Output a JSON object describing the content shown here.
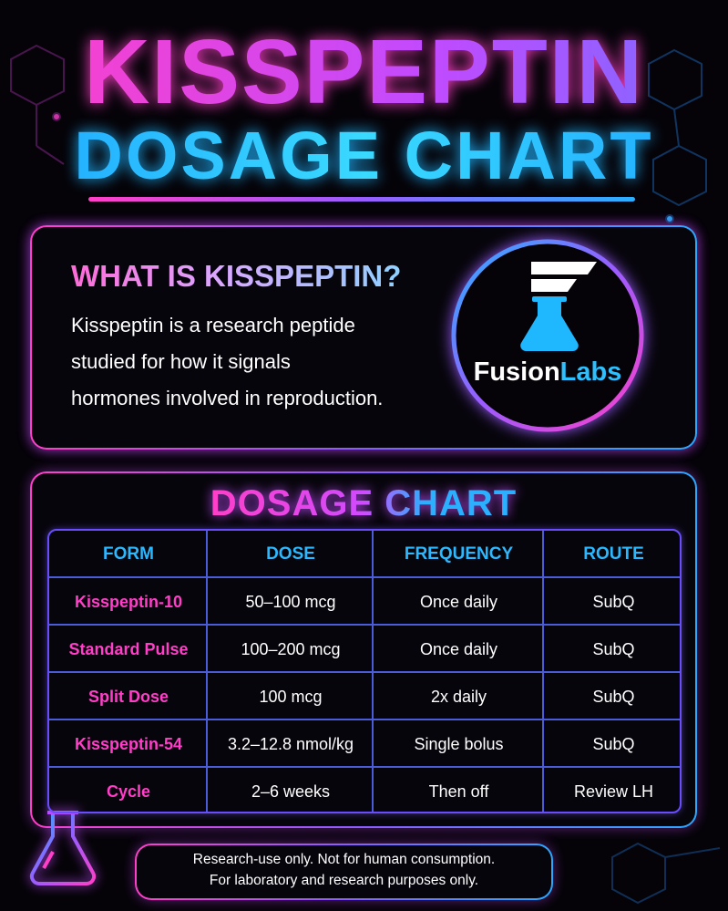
{
  "header": {
    "title": "KISSPEPTIN",
    "subtitle": "DOSAGE CHART"
  },
  "about": {
    "heading": "WHAT IS KISSPEPTIN?",
    "lines": [
      "Kisspeptin is a research peptide",
      "studied for how it signals",
      "hormones involved in reproduction."
    ]
  },
  "logo": {
    "part1": "Fusion",
    "part2": "Labs"
  },
  "table": {
    "title": "DOSAGE CHART",
    "columns": [
      "FORM",
      "DOSE",
      "FREQUENCY",
      "ROUTE"
    ],
    "rows": [
      [
        "Kisspeptin-10",
        "50–100 mcg",
        "Once daily",
        "SubQ"
      ],
      [
        "Standard Pulse",
        "100–200 mcg",
        "Once daily",
        "SubQ"
      ],
      [
        "Split Dose",
        "100 mcg",
        "2x daily",
        "SubQ"
      ],
      [
        "Kisspeptin-54",
        "3.2–12.8 nmol/kg",
        "Single bolus",
        "SubQ"
      ],
      [
        "Cycle",
        "2–6 weeks",
        "Then off",
        "Review LH"
      ]
    ]
  },
  "footer": {
    "lines": [
      "Research-use only. Not for human consumption.",
      "For laboratory and research purposes only."
    ]
  }
}
